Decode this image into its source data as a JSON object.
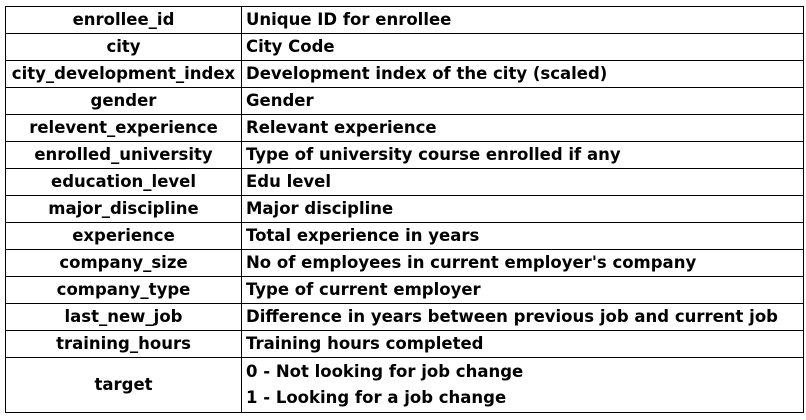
{
  "rows": [
    {
      "field": "enrollee_id",
      "description": "Unique ID for enrollee"
    },
    {
      "field": "city",
      "description": "City Code"
    },
    {
      "field": "city_development_index",
      "description": "Development index of the city (scaled)"
    },
    {
      "field": "gender",
      "description": "Gender"
    },
    {
      "field": "relevent_experience",
      "description": "Relevant experience"
    },
    {
      "field": "enrolled_university",
      "description": "Type of university course enrolled if any"
    },
    {
      "field": "education_level",
      "description": "Edu level"
    },
    {
      "field": "major_discipline",
      "description": "Major discipline"
    },
    {
      "field": "experience",
      "description": "Total experience in years"
    },
    {
      "field": "company_size",
      "description": "No of employees in current employer's company"
    },
    {
      "field": "company_type",
      "description": "Type of current employer"
    },
    {
      "field": "last_new_job",
      "description": "Difference in years between previous job and current job"
    },
    {
      "field": "training_hours",
      "description": "Training hours completed"
    }
  ],
  "target": {
    "field": "target",
    "lines": [
      "0 - Not looking for job change",
      "1 - Looking for a job change"
    ]
  }
}
